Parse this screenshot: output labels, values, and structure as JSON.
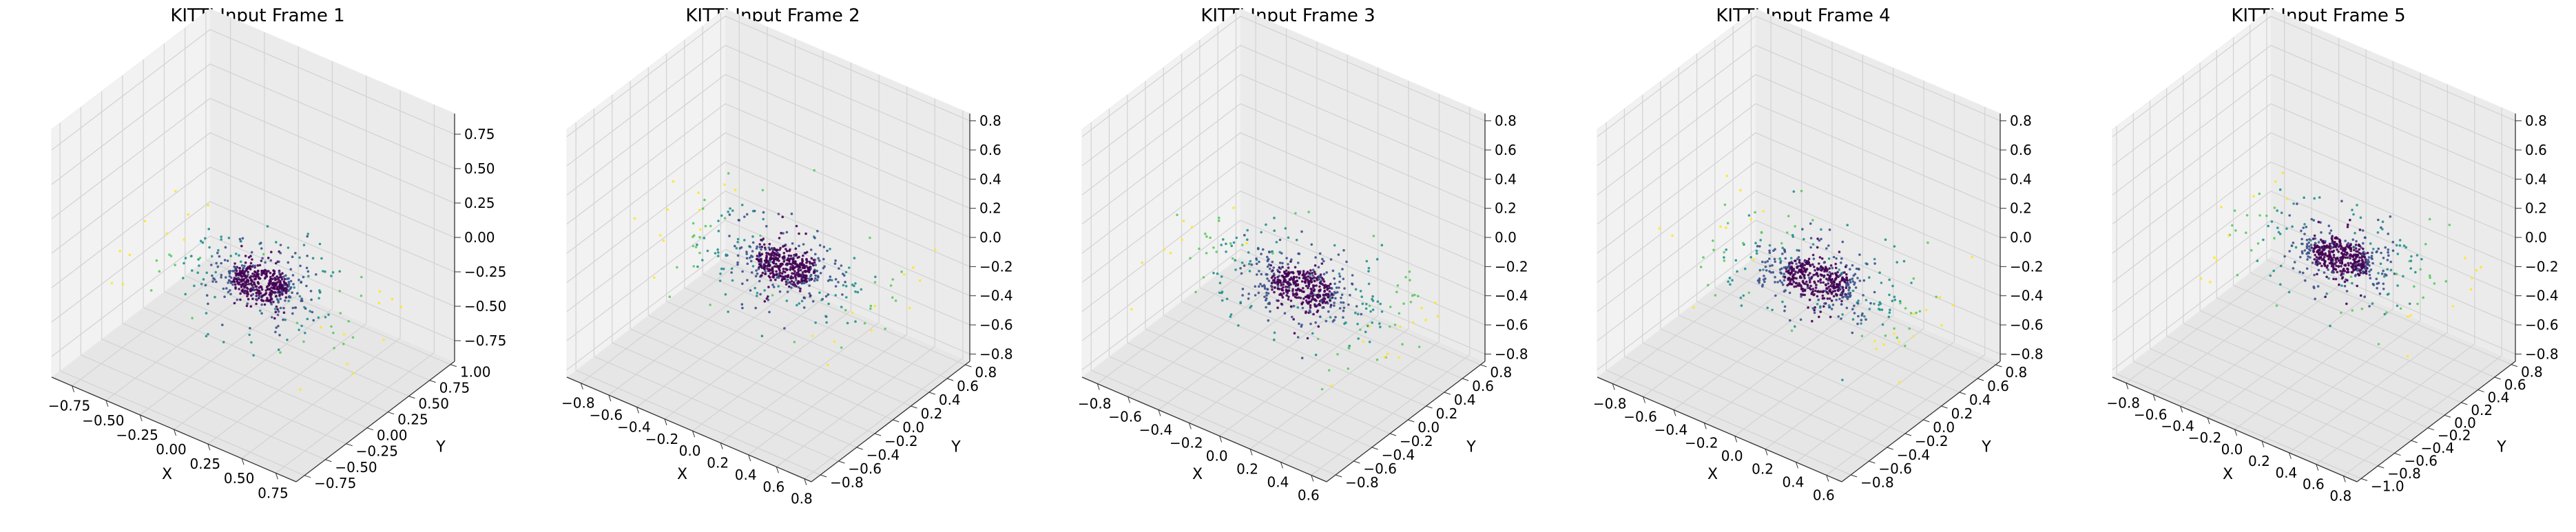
{
  "figure": {
    "background": "#ffffff"
  },
  "style": {
    "pane_colors": [
      "#f2f2f2",
      "#ebebeb",
      "#e6e6e6"
    ],
    "grid_color": "#d2d2d2",
    "axis_color": "#333333",
    "colormap": [
      "#440154",
      "#3b528b",
      "#21918c",
      "#5ec962",
      "#fde725"
    ]
  },
  "chart_data": [
    {
      "type": "scatter",
      "subtype": "3d",
      "title": "KITTI Input Frame 1",
      "xlabel": "X",
      "ylabel": "Y",
      "zlabel": "",
      "xlim": [
        -0.9,
        0.9
      ],
      "ylim": [
        -0.85,
        1.05
      ],
      "zlim": [
        -0.9,
        0.9
      ],
      "xticks": [
        -0.75,
        -0.5,
        -0.25,
        0.0,
        0.25,
        0.5,
        0.75
      ],
      "xticklabels": [
        "−0.75",
        "−0.50",
        "−0.25",
        "0.00",
        "0.25",
        "0.50",
        "0.75"
      ],
      "yticks": [
        -0.75,
        -0.5,
        -0.25,
        0.0,
        0.25,
        0.5,
        0.75,
        1.0
      ],
      "yticklabels": [
        "−0.75",
        "−0.50",
        "−0.25",
        "0.00",
        "0.25",
        "0.50",
        "0.75",
        "1.00"
      ],
      "zticks": [
        -0.75,
        -0.5,
        -0.25,
        0.0,
        0.25,
        0.5,
        0.75
      ],
      "zticklabels": [
        "−0.75",
        "−0.50",
        "−0.25",
        "0.00",
        "0.25",
        "0.50",
        "0.75"
      ],
      "grid": true,
      "points": {
        "seed": 11,
        "count": 620,
        "cluster_center": [
          0.05,
          0.1,
          -0.25
        ],
        "spread": [
          0.75,
          0.5,
          0.1
        ],
        "ring_radius": 0.18,
        "colors": "viridis (by distance from center)"
      }
    },
    {
      "type": "scatter",
      "subtype": "3d",
      "title": "KITTI Input Frame 2",
      "xlabel": "X",
      "ylabel": "Y",
      "zlabel": "",
      "xlim": [
        -0.9,
        0.85
      ],
      "ylim": [
        -0.9,
        0.85
      ],
      "zlim": [
        -0.85,
        0.85
      ],
      "xticks": [
        -0.8,
        -0.6,
        -0.4,
        -0.2,
        0.0,
        0.2,
        0.4,
        0.6,
        0.8
      ],
      "xticklabels": [
        "−0.8",
        "−0.6",
        "−0.4",
        "−0.2",
        "0.0",
        "0.2",
        "0.4",
        "0.6",
        "0.8"
      ],
      "yticks": [
        -0.8,
        -0.6,
        -0.4,
        -0.2,
        0.0,
        0.2,
        0.4,
        0.6,
        0.8
      ],
      "yticklabels": [
        "−0.8",
        "−0.6",
        "−0.4",
        "−0.2",
        "0.0",
        "0.2",
        "0.4",
        "0.6",
        "0.8"
      ],
      "zticks": [
        -0.8,
        -0.6,
        -0.4,
        -0.2,
        0.0,
        0.2,
        0.4,
        0.6,
        0.8
      ],
      "zticklabels": [
        "−0.8",
        "−0.6",
        "−0.4",
        "−0.2",
        "0.0",
        "0.2",
        "0.4",
        "0.6",
        "0.8"
      ],
      "grid": true,
      "points": {
        "seed": 23,
        "count": 640,
        "cluster_center": [
          0.05,
          0.05,
          -0.15
        ],
        "spread": [
          0.8,
          0.5,
          0.1
        ],
        "ring_radius": 0.18,
        "colors": "viridis (by distance from center)"
      }
    },
    {
      "type": "scatter",
      "subtype": "3d",
      "title": "KITTI Input Frame 3",
      "xlabel": "X",
      "ylabel": "Y",
      "zlabel": "",
      "xlim": [
        -0.9,
        0.7
      ],
      "ylim": [
        -0.9,
        0.85
      ],
      "zlim": [
        -0.85,
        0.85
      ],
      "xticks": [
        -0.8,
        -0.6,
        -0.4,
        -0.2,
        0.0,
        0.2,
        0.4,
        0.6
      ],
      "xticklabels": [
        "−0.8",
        "−0.6",
        "−0.4",
        "−0.2",
        "0.0",
        "0.2",
        "0.4",
        "0.6"
      ],
      "yticks": [
        -0.8,
        -0.6,
        -0.4,
        -0.2,
        0.0,
        0.2,
        0.4,
        0.6,
        0.8
      ],
      "yticklabels": [
        "−0.8",
        "−0.6",
        "−0.4",
        "−0.2",
        "0.0",
        "0.2",
        "0.4",
        "0.6",
        "0.8"
      ],
      "zticks": [
        -0.8,
        -0.6,
        -0.4,
        -0.2,
        0.0,
        0.2,
        0.4,
        0.6,
        0.8
      ],
      "zticklabels": [
        "−0.8",
        "−0.6",
        "−0.4",
        "−0.2",
        "0.0",
        "0.2",
        "0.4",
        "0.6",
        "0.8"
      ],
      "grid": true,
      "points": {
        "seed": 37,
        "count": 640,
        "cluster_center": [
          0.0,
          0.0,
          -0.25
        ],
        "spread": [
          0.8,
          0.5,
          0.1
        ],
        "ring_radius": 0.18,
        "colors": "viridis (by distance from center)"
      }
    },
    {
      "type": "scatter",
      "subtype": "3d",
      "title": "KITTI Input Frame 4",
      "xlabel": "X",
      "ylabel": "Y",
      "zlabel": "",
      "xlim": [
        -0.9,
        0.7
      ],
      "ylim": [
        -0.9,
        0.85
      ],
      "zlim": [
        -0.85,
        0.85
      ],
      "xticks": [
        -0.8,
        -0.6,
        -0.4,
        -0.2,
        0.0,
        0.2,
        0.4,
        0.6
      ],
      "xticklabels": [
        "−0.8",
        "−0.6",
        "−0.4",
        "−0.2",
        "0.0",
        "0.2",
        "0.4",
        "0.6"
      ],
      "yticks": [
        -0.8,
        -0.6,
        -0.4,
        -0.2,
        0.0,
        0.2,
        0.4,
        0.6,
        0.8
      ],
      "yticklabels": [
        "−0.8",
        "−0.6",
        "−0.4",
        "−0.2",
        "0.0",
        "0.2",
        "0.4",
        "0.6",
        "0.8"
      ],
      "zticks": [
        -0.8,
        -0.6,
        -0.4,
        -0.2,
        0.0,
        0.2,
        0.4,
        0.6,
        0.8
      ],
      "zticklabels": [
        "−0.8",
        "−0.6",
        "−0.4",
        "−0.2",
        "0.0",
        "0.2",
        "0.4",
        "0.6",
        "0.8"
      ],
      "grid": true,
      "points": {
        "seed": 51,
        "count": 640,
        "cluster_center": [
          0.0,
          0.0,
          -0.2
        ],
        "spread": [
          0.8,
          0.5,
          0.1
        ],
        "ring_radius": 0.18,
        "colors": "viridis (by distance from center)"
      }
    },
    {
      "type": "scatter",
      "subtype": "3d",
      "title": "KITTI Input Frame 5",
      "xlabel": "X",
      "ylabel": "Y",
      "zlabel": "",
      "xlim": [
        -0.9,
        0.9
      ],
      "ylim": [
        -1.05,
        0.85
      ],
      "zlim": [
        -0.85,
        0.85
      ],
      "xticks": [
        -0.8,
        -0.6,
        -0.4,
        -0.2,
        0.0,
        0.2,
        0.4,
        0.6,
        0.8
      ],
      "xticklabels": [
        "−0.8",
        "−0.6",
        "−0.4",
        "−0.2",
        "0.0",
        "0.2",
        "0.4",
        "0.6",
        "0.8"
      ],
      "yticks": [
        -1.0,
        -0.8,
        -0.6,
        -0.4,
        -0.2,
        0.0,
        0.2,
        0.4,
        0.6,
        0.8
      ],
      "yticklabels": [
        "−1.0",
        "−0.8",
        "−0.6",
        "−0.4",
        "−0.2",
        "0.0",
        "0.2",
        "0.4",
        "0.6",
        "0.8"
      ],
      "zticks": [
        -0.8,
        -0.6,
        -0.4,
        -0.2,
        0.0,
        0.2,
        0.4,
        0.6,
        0.8
      ],
      "zticklabels": [
        "−0.8",
        "−0.6",
        "−0.4",
        "−0.2",
        "0.0",
        "0.2",
        "0.4",
        "0.6",
        "0.8"
      ],
      "grid": true,
      "points": {
        "seed": 67,
        "count": 620,
        "cluster_center": [
          0.1,
          0.05,
          -0.1
        ],
        "spread": [
          0.75,
          0.5,
          0.1
        ],
        "ring_radius": 0.18,
        "colors": "viridis (by distance from center)"
      }
    }
  ]
}
